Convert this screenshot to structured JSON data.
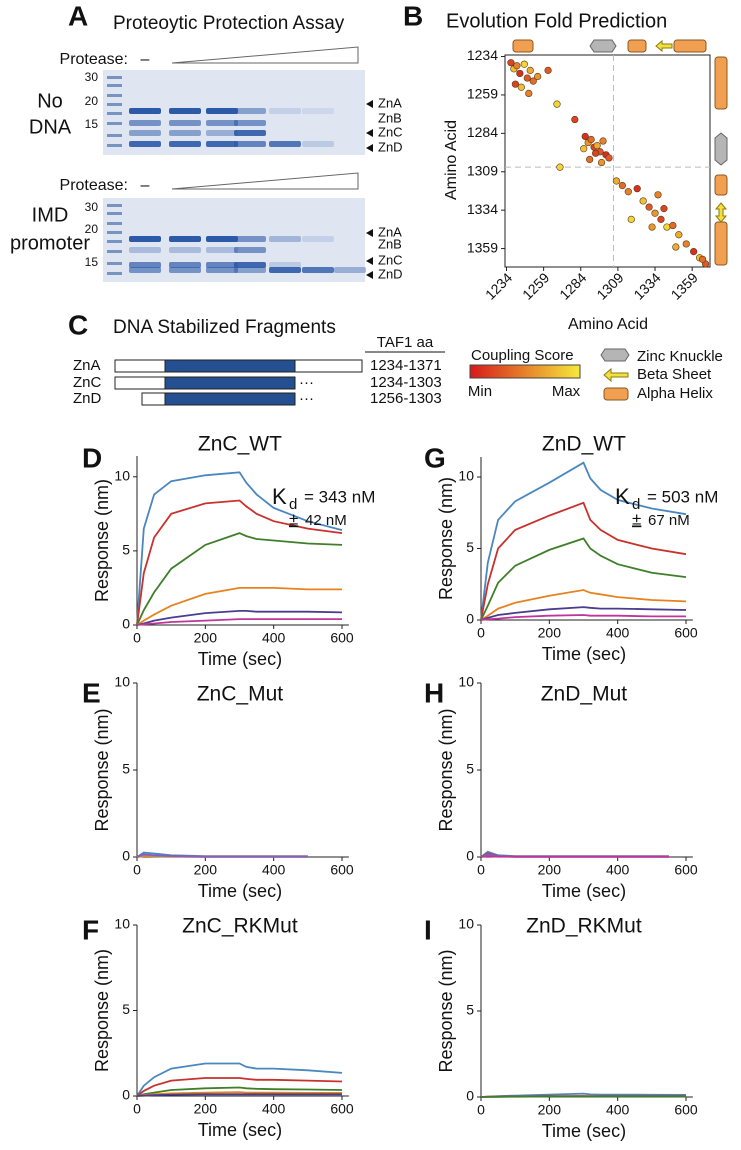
{
  "panel_a": {
    "panel": "A",
    "title": "Proteoytic Protection Assay",
    "gels": [
      {
        "condition": [
          "No",
          "DNA"
        ],
        "protease_label": "Protease:",
        "no_protease": "–",
        "ladder": [
          "30",
          "20",
          "15"
        ],
        "bands": [
          "ZnA",
          "ZnB",
          "ZnC",
          "ZnD"
        ]
      },
      {
        "condition": [
          "IMD",
          "promoter"
        ],
        "protease_label": "Protease:",
        "no_protease": "–",
        "ladder": [
          "30",
          "20",
          "15"
        ],
        "bands": [
          "ZnA",
          "ZnB",
          "ZnC",
          "ZnD"
        ]
      }
    ]
  },
  "panel_c": {
    "panel": "C",
    "title": "DNA Stabilized Fragments",
    "column_header": "TAF1 aa",
    "rows": [
      {
        "name": "ZnA",
        "range": "1234-1371"
      },
      {
        "name": "ZnC",
        "range": "1234-1303",
        "continuation": "···"
      },
      {
        "name": "ZnD",
        "range": "1256-1303",
        "continuation": "···"
      }
    ]
  },
  "chart_data": [
    {
      "type": "scatter",
      "panel": "B",
      "title": "Evolution Fold Prediction",
      "x_label": "Amino Acid",
      "y_label": "Amino Acid",
      "x": [
        1237,
        1239,
        1241,
        1243,
        1246,
        1248,
        1250,
        1252,
        1255,
        1240,
        1244,
        1249,
        1262,
        1268,
        1287,
        1289,
        1291,
        1293,
        1295,
        1297,
        1299,
        1301,
        1286,
        1290,
        1294,
        1298,
        1303,
        1270,
        1280,
        1308,
        1312,
        1316,
        1322,
        1326,
        1330,
        1334,
        1338,
        1342,
        1346,
        1350,
        1355,
        1360,
        1364,
        1368,
        1332,
        1340,
        1348,
        1366,
        1318,
        1336
      ],
      "y": [
        1238,
        1242,
        1240,
        1245,
        1239,
        1248,
        1243,
        1250,
        1247,
        1252,
        1254,
        1258,
        1243,
        1265,
        1286,
        1290,
        1288,
        1293,
        1292,
        1296,
        1289,
        1298,
        1294,
        1301,
        1297,
        1303,
        1300,
        1306,
        1275,
        1315,
        1318,
        1322,
        1320,
        1328,
        1332,
        1336,
        1340,
        1345,
        1344,
        1350,
        1356,
        1361,
        1365,
        1369,
        1345,
        1333,
        1358,
        1366,
        1340,
        1324
      ],
      "scores": [
        0.2,
        0.8,
        0.5,
        0.1,
        0.9,
        0.3,
        0.7,
        0.4,
        0.6,
        0.2,
        0.8,
        0.5,
        0.3,
        0.9,
        0.1,
        0.6,
        0.4,
        0.2,
        0.7,
        0.3,
        0.5,
        0.1,
        0.8,
        0.4,
        0.2,
        0.6,
        0.3,
        0.9,
        0.2,
        0.7,
        0.4,
        0.5,
        0.1,
        0.8,
        0.3,
        0.6,
        0.2,
        0.9,
        0.4,
        0.7,
        0.5,
        0.1,
        0.8,
        0.3,
        0.6,
        0.2,
        0.7,
        0.4,
        0.9,
        0.5
      ],
      "colormap": [
        "#d7191c",
        "#f5ea3a"
      ],
      "xlim": [
        1233,
        1371
      ],
      "ylim": [
        1233,
        1371
      ],
      "y_inverted": true,
      "xticks": [
        1234,
        1259,
        1284,
        1309,
        1334,
        1359
      ],
      "yticks": [
        1234,
        1259,
        1284,
        1309,
        1334,
        1359
      ],
      "divider": 1306,
      "colorbar_title": "Coupling Score",
      "colorbar_labels": [
        "Min",
        "Max"
      ],
      "structure_legend": [
        "Zinc Knuckle",
        "Beta Sheet",
        "Alpha Helix"
      ]
    },
    {
      "type": "line",
      "panel": "D",
      "title": "ZnC_WT",
      "x_label": "Time (sec)",
      "y_label": "Response (nm)",
      "xlim": [
        0,
        620
      ],
      "ylim": [
        0,
        11.4
      ],
      "xticks": [
        0,
        200,
        400,
        600
      ],
      "yticks": [
        0,
        5,
        10
      ],
      "annotation": {
        "symbol": "K",
        "subscript": "d",
        "value": "= 343 nM",
        "pm": "±",
        "error": "42 nM"
      },
      "x": [
        0,
        20,
        50,
        100,
        200,
        300,
        320,
        350,
        400,
        500,
        600
      ],
      "series": [
        {
          "color": "#4a87c0",
          "values": [
            0,
            6.5,
            8.8,
            9.7,
            10.1,
            10.3,
            9.6,
            8.8,
            7.9,
            7.0,
            6.4
          ]
        },
        {
          "color": "#c8322d",
          "values": [
            0,
            3.5,
            5.9,
            7.5,
            8.2,
            8.4,
            8.0,
            7.5,
            7.0,
            6.5,
            6.2
          ]
        },
        {
          "color": "#3f7f2a",
          "values": [
            0,
            1.0,
            2.2,
            3.8,
            5.4,
            6.2,
            6.0,
            5.8,
            5.7,
            5.5,
            5.4
          ]
        },
        {
          "color": "#e8821e",
          "values": [
            0,
            0.3,
            0.7,
            1.3,
            2.1,
            2.5,
            2.5,
            2.5,
            2.5,
            2.4,
            2.4
          ]
        },
        {
          "color": "#4a3d8f",
          "values": [
            0,
            0.1,
            0.3,
            0.5,
            0.8,
            0.95,
            0.95,
            0.9,
            0.9,
            0.9,
            0.85
          ]
        },
        {
          "color": "#c0359c",
          "values": [
            0,
            0.05,
            0.1,
            0.2,
            0.3,
            0.4,
            0.4,
            0.4,
            0.4,
            0.4,
            0.4
          ]
        }
      ]
    },
    {
      "type": "line",
      "panel": "G",
      "title": "ZnD_WT",
      "x_label": "Time (sec)",
      "y_label": "Response (nm)",
      "xlim": [
        0,
        620
      ],
      "ylim": [
        0,
        11.4
      ],
      "xticks": [
        0,
        200,
        400,
        600
      ],
      "yticks": [
        0,
        5,
        10
      ],
      "annotation": {
        "symbol": "K",
        "subscript": "d",
        "value": "= 503 nM",
        "pm": "±",
        "error": "67 nM"
      },
      "x": [
        0,
        20,
        50,
        100,
        200,
        300,
        320,
        350,
        400,
        500,
        600
      ],
      "series": [
        {
          "color": "#4a87c0",
          "values": [
            0,
            4,
            7,
            8.3,
            9.6,
            11.0,
            9.9,
            9.1,
            8.4,
            7.8,
            7.4
          ]
        },
        {
          "color": "#c8322d",
          "values": [
            0,
            2.5,
            5.0,
            6.3,
            7.3,
            8.2,
            7.0,
            6.3,
            5.6,
            5.0,
            4.6
          ]
        },
        {
          "color": "#3f7f2a",
          "values": [
            0,
            1.0,
            2.6,
            3.8,
            4.9,
            5.7,
            5.0,
            4.5,
            3.9,
            3.3,
            3.0
          ]
        },
        {
          "color": "#e8821e",
          "values": [
            0,
            0.3,
            0.8,
            1.2,
            1.7,
            2.1,
            1.9,
            1.8,
            1.6,
            1.4,
            1.3
          ]
        },
        {
          "color": "#4a3d8f",
          "values": [
            0,
            0.15,
            0.35,
            0.5,
            0.75,
            0.9,
            0.85,
            0.8,
            0.8,
            0.75,
            0.7
          ]
        },
        {
          "color": "#c0359c",
          "values": [
            0,
            0.05,
            0.1,
            0.2,
            0.3,
            0.35,
            0.3,
            0.3,
            0.3,
            0.25,
            0.25
          ]
        }
      ]
    },
    {
      "type": "line",
      "panel": "E",
      "title": "ZnC_Mut",
      "x_label": "Time (sec)",
      "y_label": "Response (nm)",
      "xlim": [
        0,
        620
      ],
      "ylim": [
        0,
        10
      ],
      "xticks": [
        0,
        200,
        400,
        600
      ],
      "yticks": [
        0,
        5,
        10
      ],
      "x": [
        0,
        20,
        50,
        100,
        200,
        300,
        400,
        500
      ],
      "series": [
        {
          "color": "#4a87c0",
          "values": [
            0,
            0.25,
            0.2,
            0.1,
            0.05,
            0.05,
            0.05,
            0.05
          ]
        },
        {
          "color": "#c8322d",
          "values": [
            0,
            0.1,
            0.08,
            0.05,
            0.03,
            0.03,
            0.03,
            0.03
          ]
        },
        {
          "color": "#3f7f2a",
          "values": [
            0,
            0.05,
            0.03,
            0.02,
            0.01,
            0.01,
            0.01,
            0.01
          ]
        },
        {
          "color": "#e8821e",
          "values": [
            0,
            0.05,
            0.05,
            0.03,
            0.02,
            0.02,
            0.02,
            0.02
          ]
        },
        {
          "color": "#8a5cc7",
          "values": [
            0,
            0.15,
            0.1,
            0.05,
            0.02,
            0.02,
            0.02,
            0.02
          ]
        }
      ]
    },
    {
      "type": "line",
      "panel": "H",
      "title": "ZnD_Mut",
      "x_label": "Time (sec)",
      "y_label": "Response (nm)",
      "xlim": [
        0,
        620
      ],
      "ylim": [
        0,
        10
      ],
      "xticks": [
        0,
        200,
        400,
        600
      ],
      "yticks": [
        0,
        5,
        10
      ],
      "x": [
        0,
        20,
        50,
        100,
        200,
        300,
        400,
        500,
        550
      ],
      "series": [
        {
          "color": "#4a87c0",
          "values": [
            0,
            0.3,
            0.1,
            0.05,
            0.05,
            0.05,
            0.05,
            0.05,
            0.05
          ]
        },
        {
          "color": "#c8322d",
          "values": [
            0,
            0.2,
            0.05,
            0.03,
            0.03,
            0.03,
            0.03,
            0.03,
            0.03
          ]
        },
        {
          "color": "#3f7f2a",
          "values": [
            0,
            0.1,
            0.03,
            0.02,
            0.02,
            0.02,
            0.02,
            0.02,
            0.02
          ]
        },
        {
          "color": "#8a5cc7",
          "values": [
            0,
            0.15,
            0.04,
            0.02,
            0.02,
            0.02,
            0.02,
            0.02,
            0.02
          ]
        },
        {
          "color": "#c0359c",
          "values": [
            0,
            0.05,
            0.02,
            0.01,
            0.01,
            0.01,
            0.01,
            0.01,
            0.01
          ]
        }
      ]
    },
    {
      "type": "line",
      "panel": "F",
      "title": "ZnC_RKMut",
      "x_label": "Time (sec)",
      "y_label": "Response (nm)",
      "xlim": [
        0,
        620
      ],
      "ylim": [
        0,
        10
      ],
      "xticks": [
        0,
        200,
        400,
        600
      ],
      "yticks": [
        0,
        5,
        10
      ],
      "x": [
        0,
        20,
        50,
        100,
        200,
        300,
        320,
        350,
        400,
        500,
        600
      ],
      "series": [
        {
          "color": "#4a87c0",
          "values": [
            0,
            0.6,
            1.1,
            1.6,
            1.9,
            1.9,
            1.7,
            1.6,
            1.6,
            1.5,
            1.35
          ]
        },
        {
          "color": "#c8322d",
          "values": [
            0,
            0.3,
            0.6,
            0.9,
            1.05,
            1.05,
            1.0,
            0.95,
            0.95,
            0.9,
            0.85
          ]
        },
        {
          "color": "#3f7f2a",
          "values": [
            0,
            0.1,
            0.2,
            0.35,
            0.45,
            0.5,
            0.45,
            0.42,
            0.4,
            0.38,
            0.35
          ]
        },
        {
          "color": "#e8821e",
          "values": [
            0,
            0.05,
            0.1,
            0.15,
            0.2,
            0.22,
            0.2,
            0.2,
            0.2,
            0.18,
            0.18
          ]
        },
        {
          "color": "#4a3d8f",
          "values": [
            0,
            0.02,
            0.05,
            0.08,
            0.1,
            0.1,
            0.1,
            0.1,
            0.1,
            0.1,
            0.1
          ]
        }
      ]
    },
    {
      "type": "line",
      "panel": "I",
      "title": "ZnD_RKMut",
      "x_label": "Time (sec)",
      "y_label": "Response (nm)",
      "xlim": [
        0,
        620
      ],
      "ylim": [
        0,
        10
      ],
      "xticks": [
        0,
        200,
        400,
        600
      ],
      "yticks": [
        0,
        5,
        10
      ],
      "x": [
        0,
        20,
        50,
        100,
        200,
        300,
        320,
        350,
        400,
        500,
        600
      ],
      "series": [
        {
          "color": "#4a87c0",
          "values": [
            0,
            0.02,
            0.05,
            0.08,
            0.14,
            0.2,
            0.15,
            0.14,
            0.14,
            0.13,
            0.12
          ]
        },
        {
          "color": "#c8322d",
          "values": [
            0,
            0.01,
            0.02,
            0.03,
            0.05,
            0.06,
            0.05,
            0.05,
            0.05,
            0.05,
            0.05
          ]
        },
        {
          "color": "#3f7f2a",
          "values": [
            0,
            0.01,
            0.01,
            0.02,
            0.03,
            0.03,
            0.03,
            0.03,
            0.03,
            0.03,
            0.03
          ]
        }
      ]
    }
  ]
}
